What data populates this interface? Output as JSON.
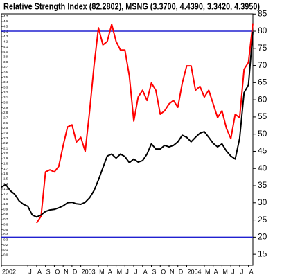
{
  "chart_data": {
    "type": "line",
    "title": "Relative Strength Index (82.2802), MSNG (3.3700, 4.4390, 3.3420, 4.3950)",
    "categories": [
      "2002",
      null,
      null,
      null,
      null,
      null,
      "J",
      null,
      "A",
      null,
      "S",
      null,
      "O",
      null,
      "N",
      null,
      "D",
      null,
      "2003",
      null,
      null,
      null,
      "M",
      null,
      "A",
      null,
      "M",
      null,
      "J",
      null,
      "J",
      null,
      "A",
      null,
      "S",
      null,
      "O",
      null,
      "N",
      null,
      "D",
      null,
      "2004",
      null,
      null,
      null,
      "M",
      null,
      "A",
      null,
      "M",
      null,
      "J",
      null,
      "J",
      null,
      "A",
      null
    ],
    "series": [
      {
        "color": "#ff0000",
        "axis": "y2",
        "values": [
          null,
          null,
          null,
          null,
          null,
          null,
          null,
          null,
          24.1,
          26.1,
          39,
          39.6,
          39,
          40.6,
          46.7,
          52.1,
          52.7,
          47.7,
          49.1,
          45,
          56.8,
          69.9,
          81,
          76,
          77,
          82,
          77,
          74.5,
          74.5,
          66.9,
          53.8,
          60.8,
          62.8,
          59.8,
          64.9,
          62.8,
          55.8,
          56.8,
          58.8,
          59.8,
          57.8,
          64.9,
          69.9,
          69.9,
          62.8,
          63.9,
          60.8,
          62.8,
          58.8,
          54.8,
          56.8,
          51.7,
          48.7,
          55.8,
          54.8,
          68.9,
          70.9,
          82.2802
        ]
      },
      {
        "color": "#000000",
        "values": [
          1.34,
          1.39,
          1.27,
          1.2,
          1.07,
          1.0,
          0.96,
          0.79,
          0.75,
          0.79,
          0.86,
          0.89,
          0.9,
          0.93,
          0.97,
          1.03,
          1.04,
          1.01,
          1.0,
          1.04,
          1.13,
          1.27,
          1.48,
          1.72,
          1.95,
          1.99,
          1.91,
          1.99,
          1.94,
          1.82,
          1.89,
          1.83,
          1.86,
          1.99,
          2.19,
          2.09,
          2.09,
          2.16,
          2.13,
          2.16,
          2.23,
          2.36,
          2.32,
          2.23,
          2.32,
          2.4,
          2.43,
          2.32,
          2.2,
          2.13,
          2.19,
          2.05,
          1.95,
          1.89,
          2.3,
          3.2,
          3.35,
          4.395
        ]
      }
    ],
    "ylim": [
      -0.2,
      4.75
    ],
    "yticks": [
      {
        "value": 0,
        "label": "0.0"
      },
      0.1,
      0.2,
      0.3,
      0.4,
      0.5,
      0.6,
      0.7,
      0.8,
      0.9,
      {
        "value": 1,
        "label": "1.0"
      },
      1.1,
      1.2,
      1.3,
      1.4,
      1.5,
      1.6,
      1.7,
      1.8,
      1.9,
      {
        "value": 2,
        "label": "2.0"
      },
      2.1,
      2.2,
      2.3,
      2.4,
      2.5,
      2.6,
      2.7,
      2.8,
      2.9,
      {
        "value": 3,
        "label": "3.0"
      },
      3.1,
      3.2,
      3.3,
      3.4,
      3.5,
      3.6,
      3.7,
      3.8,
      3.9,
      {
        "value": 4,
        "label": "4.0"
      },
      4.1,
      4.2,
      4.3,
      4.4,
      4.5,
      4.6,
      4.7
    ],
    "y2lim": [
      11.8,
      85.05
    ],
    "y2ticks": [
      15,
      20,
      25,
      30,
      35,
      40,
      45,
      50,
      55,
      60,
      65,
      70,
      75,
      80,
      85
    ],
    "reference_lines": [
      20,
      80
    ],
    "reference_color": "#2020d0"
  }
}
